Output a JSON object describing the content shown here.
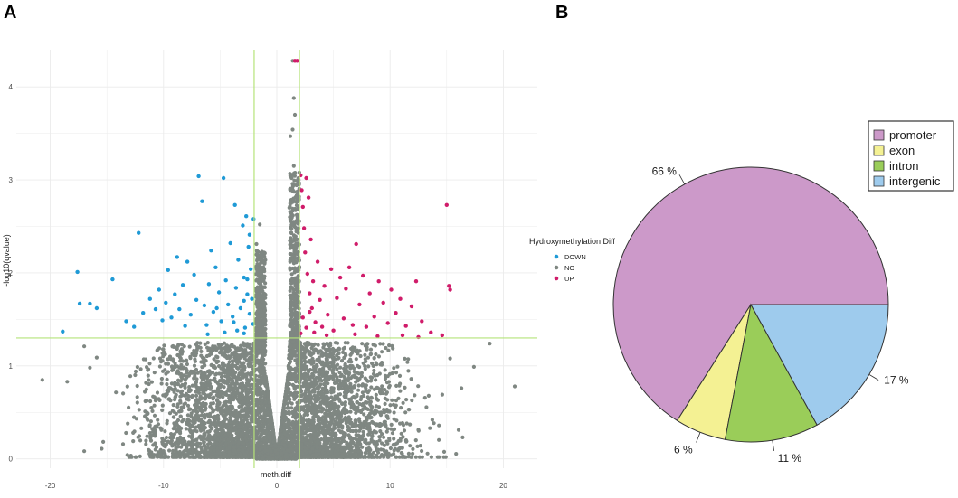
{
  "panels": {
    "a_label": "A",
    "b_label": "B"
  },
  "chart_data": [
    {
      "type": "scatter",
      "title": "",
      "xlabel": "meth.diff",
      "ylabel": "-log10(qvalue)",
      "xlim": [
        -23,
        23
      ],
      "ylim": [
        -0.1,
        4.4
      ],
      "xticks": [
        -20,
        -10,
        0,
        10,
        20
      ],
      "yticks": [
        0,
        1,
        2,
        3,
        4
      ],
      "grid": true,
      "hlines": [
        1.3
      ],
      "vlines": [
        -2,
        2
      ],
      "threshold_line_color": "#b5e37a",
      "legend": {
        "title": "Hydroxymethylation Diff",
        "placement": "right"
      },
      "series": [
        {
          "name": "DOWN",
          "color": "#1f9ad6",
          "points": [
            [
              -18.9,
              1.37
            ],
            [
              -17.6,
              2.01
            ],
            [
              -17.4,
              1.67
            ],
            [
              -16.5,
              1.67
            ],
            [
              -15.9,
              1.62
            ],
            [
              -14.5,
              1.93
            ],
            [
              -13.3,
              1.48
            ],
            [
              -12.6,
              1.42
            ],
            [
              -12.2,
              2.43
            ],
            [
              -11.8,
              1.57
            ],
            [
              -11.2,
              1.72
            ],
            [
              -10.7,
              1.61
            ],
            [
              -10.4,
              1.82
            ],
            [
              -10.1,
              1.49
            ],
            [
              -9.8,
              1.68
            ],
            [
              -9.6,
              2.03
            ],
            [
              -9.3,
              1.52
            ],
            [
              -9.0,
              1.77
            ],
            [
              -8.8,
              2.17
            ],
            [
              -8.6,
              1.61
            ],
            [
              -8.3,
              1.87
            ],
            [
              -8.1,
              1.43
            ],
            [
              -7.9,
              2.12
            ],
            [
              -7.6,
              1.55
            ],
            [
              -7.3,
              1.98
            ],
            [
              -7.1,
              1.71
            ],
            [
              -6.9,
              3.04
            ],
            [
              -6.6,
              2.77
            ],
            [
              -6.4,
              1.65
            ],
            [
              -6.2,
              1.44
            ],
            [
              -6.0,
              1.88
            ],
            [
              -5.8,
              2.24
            ],
            [
              -5.6,
              1.58
            ],
            [
              -5.4,
              2.06
            ],
            [
              -5.1,
              1.79
            ],
            [
              -4.9,
              1.48
            ],
            [
              -4.7,
              3.02
            ],
            [
              -4.5,
              1.92
            ],
            [
              -4.3,
              1.66
            ],
            [
              -4.1,
              2.32
            ],
            [
              -3.9,
              1.53
            ],
            [
              -3.7,
              2.73
            ],
            [
              -3.6,
              1.84
            ],
            [
              -3.4,
              2.14
            ],
            [
              -3.2,
              1.62
            ],
            [
              -3.0,
              2.51
            ],
            [
              -2.9,
              1.95
            ],
            [
              -2.8,
              1.41
            ],
            [
              -2.7,
              2.61
            ],
            [
              -2.6,
              1.77
            ],
            [
              -2.5,
              2.28
            ],
            [
              -2.4,
              1.56
            ],
            [
              -2.3,
              2.04
            ],
            [
              -2.2,
              1.72
            ],
            [
              -2.1,
              1.45
            ],
            [
              -2.05,
              2.58
            ],
            [
              -2.9,
              1.35
            ],
            [
              -3.5,
              1.38
            ],
            [
              -4.6,
              1.36
            ],
            [
              -6.1,
              1.34
            ],
            [
              -5.3,
              1.62
            ],
            [
              -3.8,
              1.47
            ],
            [
              -2.6,
              1.93
            ],
            [
              -2.4,
              2.41
            ],
            [
              -2.9,
              1.7
            ]
          ]
        },
        {
          "name": "NO",
          "color": "#7f8782",
          "points": []
        },
        {
          "name": "UP",
          "color": "#d01c6a",
          "points": [
            [
              1.6,
              4.28
            ],
            [
              2.1,
              3.05
            ],
            [
              2.2,
              2.89
            ],
            [
              2.3,
              2.71
            ],
            [
              2.4,
              2.48
            ],
            [
              2.5,
              2.22
            ],
            [
              2.6,
              3.02
            ],
            [
              2.7,
              1.99
            ],
            [
              2.8,
              2.81
            ],
            [
              2.9,
              1.78
            ],
            [
              3.0,
              2.36
            ],
            [
              3.1,
              1.62
            ],
            [
              3.2,
              1.91
            ],
            [
              3.4,
              1.47
            ],
            [
              3.6,
              2.12
            ],
            [
              3.8,
              1.71
            ],
            [
              4.0,
              1.42
            ],
            [
              4.2,
              1.86
            ],
            [
              4.5,
              1.55
            ],
            [
              4.8,
              2.04
            ],
            [
              5.0,
              1.38
            ],
            [
              5.3,
              1.73
            ],
            [
              5.6,
              1.95
            ],
            [
              5.9,
              1.51
            ],
            [
              6.1,
              1.83
            ],
            [
              6.4,
              2.06
            ],
            [
              6.7,
              1.44
            ],
            [
              7.0,
              2.31
            ],
            [
              7.3,
              1.66
            ],
            [
              7.6,
              1.97
            ],
            [
              7.9,
              1.42
            ],
            [
              8.2,
              1.78
            ],
            [
              8.6,
              1.53
            ],
            [
              9.0,
              1.91
            ],
            [
              9.4,
              1.68
            ],
            [
              9.8,
              1.46
            ],
            [
              10.1,
              1.82
            ],
            [
              10.5,
              1.57
            ],
            [
              10.9,
              1.72
            ],
            [
              11.4,
              1.43
            ],
            [
              11.9,
              1.64
            ],
            [
              12.3,
              1.91
            ],
            [
              12.8,
              1.48
            ],
            [
              13.6,
              1.36
            ],
            [
              14.6,
              1.33
            ],
            [
              15.0,
              2.73
            ],
            [
              15.2,
              1.86
            ],
            [
              15.3,
              1.82
            ],
            [
              2.1,
              1.35
            ],
            [
              2.3,
              1.52
            ],
            [
              2.6,
              1.41
            ],
            [
              2.9,
              1.58
            ],
            [
              3.3,
              1.36
            ],
            [
              4.4,
              1.33
            ],
            [
              6.9,
              1.34
            ],
            [
              8.9,
              1.32
            ],
            [
              11.1,
              1.33
            ],
            [
              12.5,
              1.31
            ],
            [
              1.8,
              4.28
            ]
          ]
        }
      ]
    },
    {
      "type": "pie",
      "title": "",
      "categories": [
        "promoter",
        "exon",
        "intron",
        "intergenic"
      ],
      "values": [
        66,
        6,
        11,
        17
      ],
      "slice_labels": [
        "66 %",
        "6 %",
        "11 %",
        "17 %"
      ],
      "colors": [
        "#cc99c9",
        "#f4f193",
        "#9acd59",
        "#9ecbed"
      ],
      "legend": {
        "placement": "top-right"
      }
    }
  ]
}
